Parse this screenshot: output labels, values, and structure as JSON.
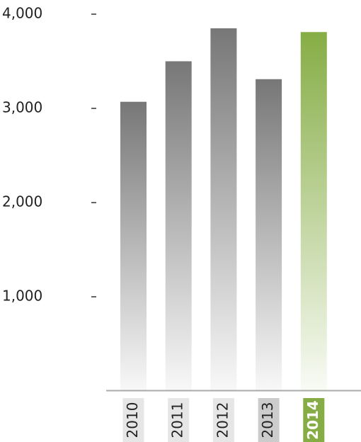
{
  "chart_data": {
    "type": "bar",
    "categories": [
      "2010",
      "2011",
      "2012",
      "2013",
      "2014"
    ],
    "values": [
      3070,
      3500,
      3850,
      3310,
      3810
    ],
    "colors": [
      "#777777",
      "#777777",
      "#777777",
      "#777777",
      "#86ad45"
    ],
    "label_colors": [
      "#e6e6e6",
      "#e6e6e6",
      "#e6e6e6",
      "#cccccc",
      "#86ad45"
    ],
    "ylim": [
      0,
      4000
    ],
    "yticks": [
      {
        "value": 1000,
        "label": "1,000"
      },
      {
        "value": 2000,
        "label": "2,000"
      },
      {
        "value": 3000,
        "label": "3,000"
      },
      {
        "value": 4000,
        "label": "4,000"
      }
    ],
    "grid": false
  }
}
